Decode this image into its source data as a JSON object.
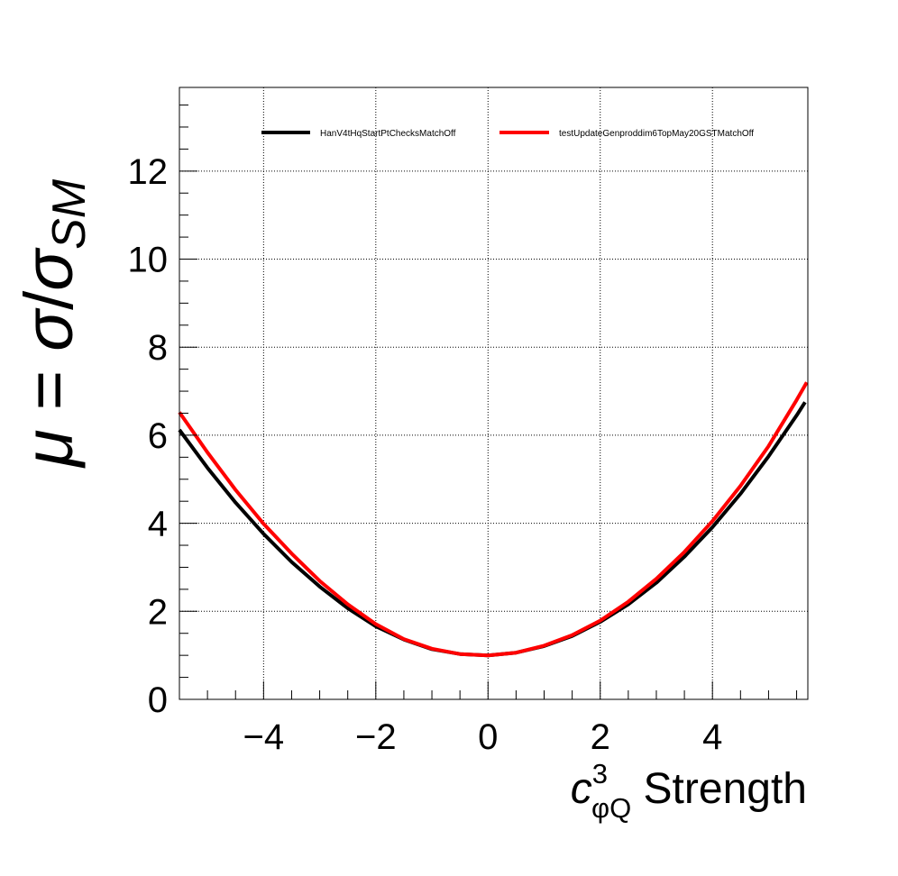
{
  "chart_data": {
    "type": "line",
    "title": "",
    "xlabel": {
      "symbol": "c",
      "superscript": "3",
      "subscript": "φQ",
      "suffix": " Strength"
    },
    "ylabel": {
      "mu": "μ",
      "equals": " = ",
      "sigma": "σ",
      "slash": "/",
      "sigma2": "σ",
      "subscript": "SM"
    },
    "xlim": [
      -5.5,
      5.7
    ],
    "ylim": [
      0,
      13.9
    ],
    "xticks": [
      -4,
      -2,
      0,
      2,
      4
    ],
    "xtick_labels": [
      "−4",
      "−2",
      "0",
      "2",
      "4"
    ],
    "yticks": [
      0,
      2,
      4,
      6,
      8,
      10,
      12
    ],
    "ytick_labels": [
      "0",
      "2",
      "4",
      "6",
      "8",
      "10",
      "12"
    ],
    "grid": true,
    "legend_position": "top",
    "series": [
      {
        "name": "HanV4tHqStartPtChecksMatchOff",
        "color": "#000000",
        "x": [
          -5.5,
          -5.0,
          -4.5,
          -4.0,
          -3.5,
          -3.0,
          -2.5,
          -2.0,
          -1.5,
          -1.0,
          -0.5,
          0.0,
          0.5,
          1.0,
          1.5,
          2.0,
          2.5,
          3.0,
          3.5,
          4.0,
          4.5,
          5.0,
          5.5,
          5.65
        ],
        "y": [
          6.12,
          5.26,
          4.47,
          3.76,
          3.12,
          2.56,
          2.07,
          1.66,
          1.36,
          1.14,
          1.03,
          1.0,
          1.06,
          1.21,
          1.44,
          1.76,
          2.16,
          2.65,
          3.24,
          3.91,
          4.67,
          5.52,
          6.45,
          6.75
        ]
      },
      {
        "name": "testUpdateGenproddim6TopMay20GSTMatchOff",
        "color": "#ff0000",
        "x": [
          -5.5,
          -5.0,
          -4.5,
          -4.0,
          -3.5,
          -3.0,
          -2.5,
          -2.0,
          -1.5,
          -1.0,
          -0.5,
          0.0,
          0.5,
          1.0,
          1.5,
          2.0,
          2.5,
          3.0,
          3.5,
          4.0,
          4.5,
          5.0,
          5.5,
          5.68
        ],
        "y": [
          6.52,
          5.61,
          4.76,
          3.99,
          3.31,
          2.69,
          2.16,
          1.71,
          1.37,
          1.15,
          1.03,
          1.0,
          1.06,
          1.22,
          1.46,
          1.79,
          2.22,
          2.74,
          3.35,
          4.05,
          4.85,
          5.75,
          6.8,
          7.2
        ]
      }
    ]
  }
}
